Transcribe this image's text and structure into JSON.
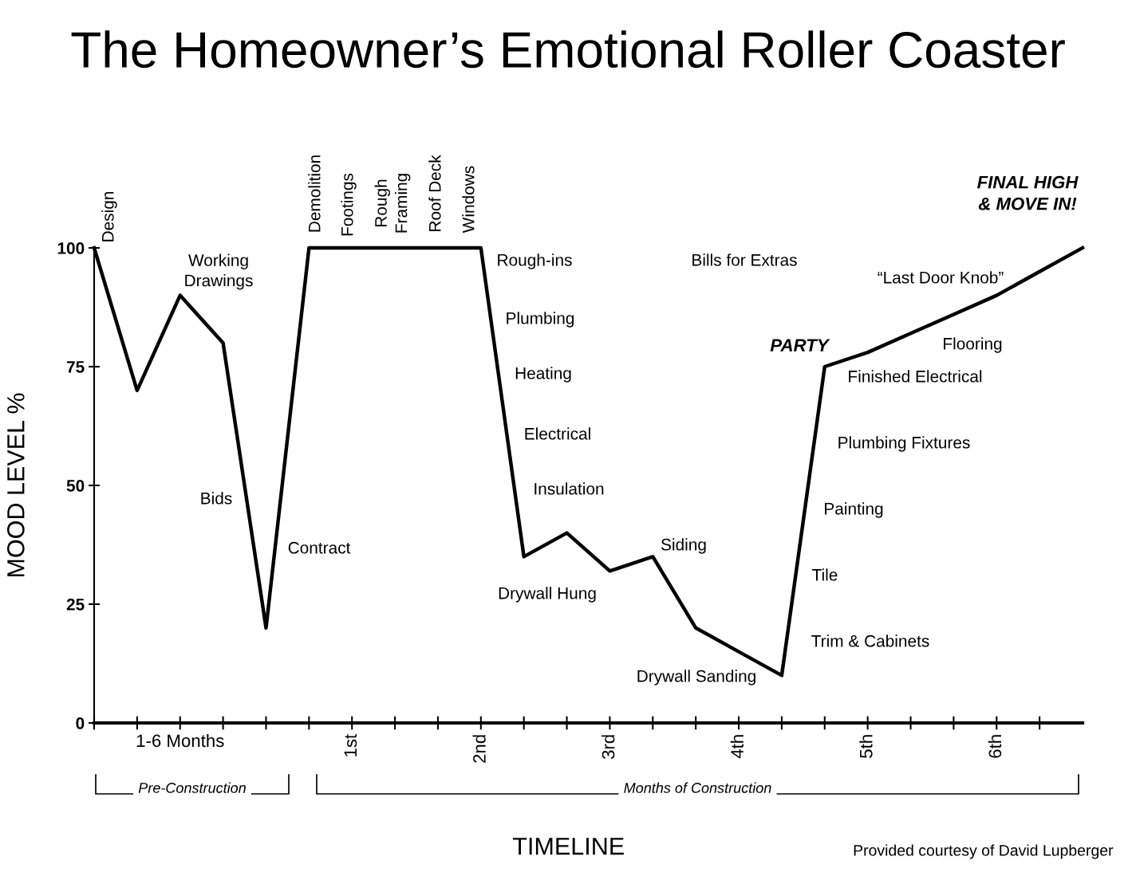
{
  "chart_data": {
    "type": "line",
    "title": "The Homeowner’s Emotional Roller Coaster",
    "xlabel": "TIMELINE",
    "ylabel": "MOOD LEVEL %",
    "categories": [
      null,
      null,
      "1-6 Months",
      null,
      null,
      null,
      "1st",
      null,
      null,
      "2nd",
      null,
      null,
      "3rd",
      null,
      null,
      "4th",
      null,
      null,
      "5th",
      null,
      null,
      "6th",
      null,
      null
    ],
    "series": [
      {
        "color": "#000000",
        "values": [
          100,
          70,
          90,
          80,
          20,
          100,
          100,
          100,
          100,
          100,
          35,
          40,
          32,
          35,
          20,
          15,
          10,
          75,
          78,
          82,
          86,
          90,
          95,
          100
        ]
      }
    ],
    "ylim": [
      0,
      100
    ],
    "yticks": [
      0,
      25,
      50,
      75,
      100
    ],
    "grid": false,
    "legend": false,
    "marker": "none",
    "line_style": "solid",
    "annotations": [
      "Design",
      "Working\nDrawings",
      "Bids",
      "Contract",
      "Demolition",
      "Footings",
      "Rough\nFraming",
      "Roof Deck",
      "Windows",
      "Rough-ins",
      "Plumbing",
      "Heating",
      "Electrical",
      "Insulation",
      "Drywall Hung",
      "Siding",
      "Drywall Sanding",
      "Bills for Extras",
      "PARTY",
      "Finished Electrical",
      "Plumbing Fixtures",
      "Painting",
      "Tile",
      "Trim & Cabinets",
      "“Last Door Knob”",
      "Flooring",
      "FINAL HIGH\n& MOVE IN!",
      "Pre-Construction",
      "Months of Construction",
      "Provided courtesy of David Lupberger"
    ]
  }
}
